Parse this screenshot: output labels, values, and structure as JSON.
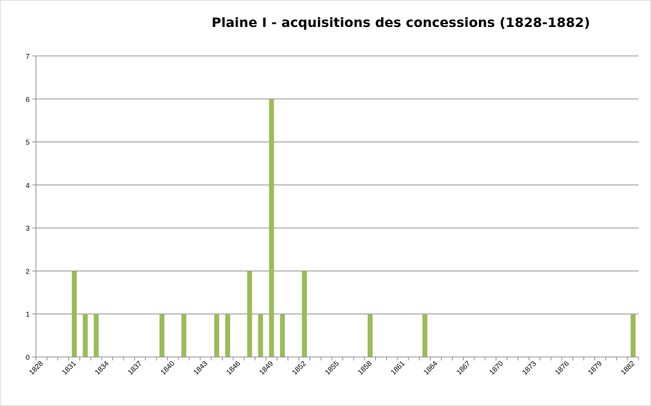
{
  "chart_data": {
    "type": "bar",
    "title": "Plaine I - acquisitions des concessions (1828-1882)",
    "xlabel": "",
    "ylabel": "",
    "x_range": [
      1828,
      1882
    ],
    "x_tick_labels": [
      "1828",
      "1831",
      "1834",
      "1837",
      "1840",
      "1843",
      "1846",
      "1849",
      "1852",
      "1855",
      "1858",
      "1861",
      "1864",
      "1867",
      "1870",
      "1873",
      "1876",
      "1879",
      "1882"
    ],
    "ylim": [
      0,
      7
    ],
    "y_ticks": [
      0,
      1,
      2,
      3,
      4,
      5,
      6,
      7
    ],
    "grid": "horizontal",
    "legend": "none",
    "bar_color": "#9bbb59",
    "values": {
      "1831": 2,
      "1832": 1,
      "1833": 1,
      "1839": 1,
      "1841": 1,
      "1844": 1,
      "1845": 1,
      "1847": 2,
      "1848": 1,
      "1849": 6,
      "1850": 1,
      "1852": 2,
      "1858": 1,
      "1863": 1,
      "1882": 1
    }
  }
}
